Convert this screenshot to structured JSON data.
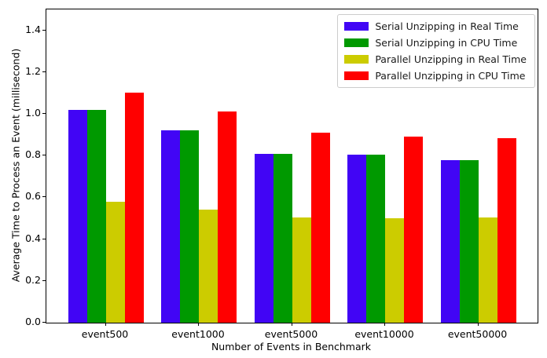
{
  "figure": {
    "background": "#ffffff",
    "axis_color": "#000000"
  },
  "chart_data": {
    "type": "bar",
    "title": "",
    "xlabel": "Number of Events in Benchmark",
    "ylabel": "Average Time to Process an Event (millisecond)",
    "categories": [
      "event500",
      "event1000",
      "event5000",
      "event10000",
      "event50000"
    ],
    "series": [
      {
        "name": "Serial Unzipping in Real Time",
        "color": "#4105f5",
        "values": [
          1.02,
          0.92,
          0.81,
          0.805,
          0.78
        ]
      },
      {
        "name": "Serial Unzipping in CPU Time",
        "color": "#009900",
        "values": [
          1.02,
          0.92,
          0.81,
          0.805,
          0.78
        ]
      },
      {
        "name": "Parallel Unzipping in Real Time",
        "color": "#cccc00",
        "values": [
          0.58,
          0.54,
          0.505,
          0.5,
          0.505
        ]
      },
      {
        "name": "Parallel Unzipping in CPU Time",
        "color": "#ff0000",
        "values": [
          1.1,
          1.01,
          0.91,
          0.89,
          0.885
        ]
      }
    ],
    "ylim": [
      0,
      1.5
    ],
    "yticks": [
      "0.0",
      "0.2",
      "0.4",
      "0.6",
      "0.8",
      "1.0",
      "1.2",
      "1.4"
    ],
    "legend_position": "upper right",
    "grid": false
  }
}
